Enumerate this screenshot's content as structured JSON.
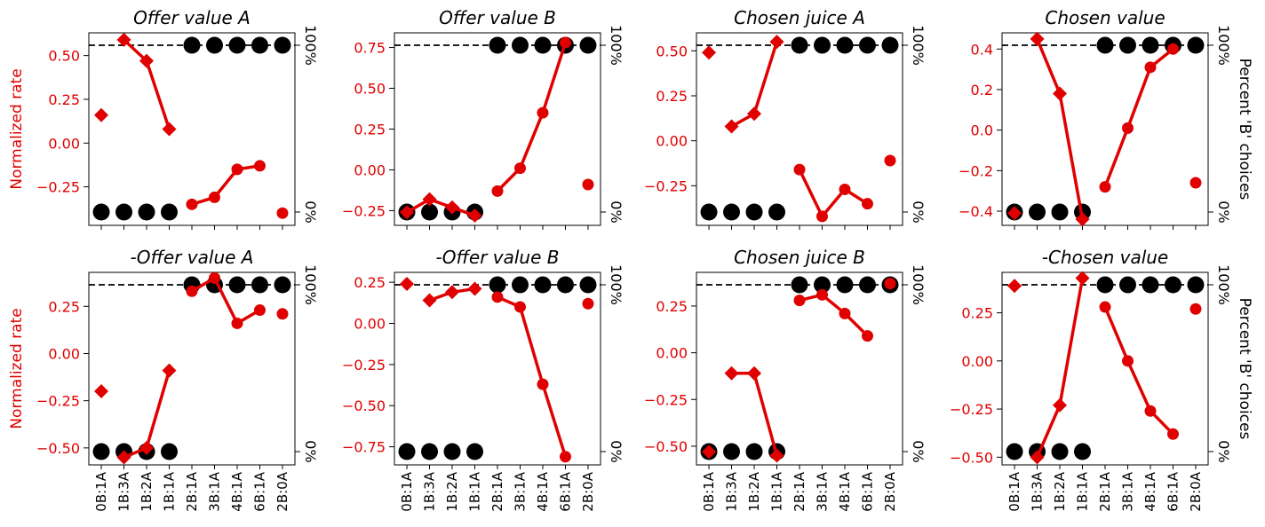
{
  "colors": {
    "rate": "#e00000",
    "choice": "#000000",
    "reference": "#000000"
  },
  "chart_data": [
    {
      "type": "line",
      "title": "Offer value A",
      "ylabel_left": "Normalized rate",
      "ylabel_right": "",
      "categories": [
        "0B:1A",
        "1B:3A",
        "1B:2A",
        "1B:1A",
        "2B:1A",
        "3B:1A",
        "4B:1A",
        "6B:1A",
        "2B:0A"
      ],
      "ylim": [
        -0.47,
        0.63
      ],
      "yticks": [
        -0.25,
        0.0,
        0.25,
        0.5
      ],
      "ytick_labels": [
        "−0.25",
        "0.00",
        "0.25",
        "0.50"
      ],
      "right_axis": {
        "ticks": [
          "0%",
          "100%"
        ]
      },
      "percent_B": [
        0,
        0,
        0,
        0,
        100,
        100,
        100,
        100,
        100
      ],
      "rate": [
        0.16,
        0.59,
        0.47,
        0.08,
        -0.35,
        -0.31,
        -0.15,
        -0.13,
        -0.4
      ],
      "rate_markers": [
        "diamond",
        "diamond",
        "diamond",
        "diamond",
        "circle",
        "circle",
        "circle",
        "circle",
        "circle"
      ],
      "rate_segments": [
        [
          1,
          3
        ],
        [
          4,
          7
        ]
      ]
    },
    {
      "type": "line",
      "title": "Offer value B",
      "ylabel_left": "",
      "ylabel_right": "",
      "categories": [
        "0B:1A",
        "1B:3A",
        "1B:2A",
        "1B:1A",
        "2B:1A",
        "3B:1A",
        "4B:1A",
        "6B:1A",
        "2B:0A"
      ],
      "ylim": [
        -0.34,
        0.84
      ],
      "yticks": [
        -0.25,
        0.0,
        0.25,
        0.5,
        0.75
      ],
      "ytick_labels": [
        "−0.25",
        "0.00",
        "0.25",
        "0.50",
        "0.75"
      ],
      "right_axis": {
        "ticks": [
          "0%",
          "100%"
        ]
      },
      "percent_B": [
        0,
        0,
        0,
        0,
        100,
        100,
        100,
        100,
        100
      ],
      "rate": [
        -0.26,
        -0.18,
        -0.23,
        -0.28,
        -0.13,
        0.01,
        0.35,
        0.78,
        -0.09
      ],
      "rate_markers": [
        "diamond",
        "diamond",
        "diamond",
        "diamond",
        "circle",
        "circle",
        "circle",
        "circle",
        "circle"
      ],
      "rate_segments": [
        [
          0,
          3
        ],
        [
          4,
          7
        ]
      ]
    },
    {
      "type": "line",
      "title": "Chosen juice A",
      "ylabel_left": "",
      "ylabel_right": "",
      "categories": [
        "0B:1A",
        "1B:3A",
        "1B:2A",
        "1B:1A",
        "2B:1A",
        "3B:1A",
        "4B:1A",
        "6B:1A",
        "2B:0A"
      ],
      "ylim": [
        -0.47,
        0.6
      ],
      "yticks": [
        -0.25,
        0.0,
        0.25,
        0.5
      ],
      "ytick_labels": [
        "−0.25",
        "0.00",
        "0.25",
        "0.50"
      ],
      "right_axis": {
        "ticks": [
          "0%",
          "100%"
        ]
      },
      "percent_B": [
        0,
        0,
        0,
        0,
        100,
        100,
        100,
        100,
        100
      ],
      "rate": [
        0.49,
        0.08,
        0.15,
        0.55,
        -0.16,
        -0.42,
        -0.27,
        -0.35,
        -0.11
      ],
      "rate_markers": [
        "diamond",
        "diamond",
        "diamond",
        "diamond",
        "circle",
        "circle",
        "circle",
        "circle",
        "circle"
      ],
      "rate_segments": [
        [
          1,
          3
        ],
        [
          4,
          7
        ]
      ]
    },
    {
      "type": "line",
      "title": "Chosen value",
      "ylabel_left": "",
      "ylabel_right": "Percent 'B' choices",
      "categories": [
        "0B:1A",
        "1B:3A",
        "1B:2A",
        "1B:1A",
        "2B:1A",
        "3B:1A",
        "4B:1A",
        "6B:1A",
        "2B:0A"
      ],
      "ylim": [
        -0.47,
        0.48
      ],
      "yticks": [
        -0.4,
        -0.2,
        0.0,
        0.2,
        0.4
      ],
      "ytick_labels": [
        "−0.4",
        "−0.2",
        "0.0",
        "0.2",
        "0.4"
      ],
      "right_axis": {
        "ticks": [
          "0%",
          "100%"
        ]
      },
      "percent_B": [
        0,
        0,
        0,
        0,
        100,
        100,
        100,
        100,
        100
      ],
      "rate": [
        -0.41,
        0.45,
        0.18,
        -0.44,
        -0.28,
        0.01,
        0.31,
        0.4,
        -0.26
      ],
      "rate_markers": [
        "diamond",
        "diamond",
        "diamond",
        "diamond",
        "circle",
        "circle",
        "circle",
        "circle",
        "circle"
      ],
      "rate_segments": [
        [
          1,
          3
        ],
        [
          4,
          7
        ]
      ]
    },
    {
      "type": "line",
      "title": "-Offer value A",
      "ylabel_left": "Normalized rate",
      "ylabel_right": "",
      "categories": [
        "0B:1A",
        "1B:3A",
        "1B:2A",
        "1B:1A",
        "2B:1A",
        "3B:1A",
        "4B:1A",
        "6B:1A",
        "2B:0A"
      ],
      "ylim": [
        -0.59,
        0.43
      ],
      "yticks": [
        -0.5,
        -0.25,
        0.0,
        0.25
      ],
      "ytick_labels": [
        "−0.50",
        "−0.25",
        "0.00",
        "0.25"
      ],
      "right_axis": {
        "ticks": [
          "0%",
          "100%"
        ]
      },
      "percent_B": [
        0,
        0,
        0,
        0,
        100,
        100,
        100,
        100,
        100
      ],
      "rate": [
        -0.2,
        -0.55,
        -0.5,
        -0.09,
        0.33,
        0.4,
        0.16,
        0.23,
        0.21
      ],
      "rate_markers": [
        "diamond",
        "diamond",
        "diamond",
        "diamond",
        "circle",
        "circle",
        "circle",
        "circle",
        "circle"
      ],
      "rate_segments": [
        [
          1,
          3
        ],
        [
          4,
          7
        ]
      ]
    },
    {
      "type": "line",
      "title": "-Offer value B",
      "ylabel_left": "",
      "ylabel_right": "",
      "categories": [
        "0B:1A",
        "1B:3A",
        "1B:2A",
        "1B:1A",
        "2B:1A",
        "3B:1A",
        "4B:1A",
        "6B:1A",
        "2B:0A"
      ],
      "ylim": [
        -0.86,
        0.31
      ],
      "yticks": [
        -0.75,
        -0.5,
        -0.25,
        0.0,
        0.25
      ],
      "ytick_labels": [
        "−0.75",
        "−0.50",
        "−0.25",
        "0.00",
        "0.25"
      ],
      "right_axis": {
        "ticks": [
          "0%",
          "100%"
        ]
      },
      "percent_B": [
        0,
        0,
        0,
        0,
        100,
        100,
        100,
        100,
        100
      ],
      "rate": [
        0.24,
        0.14,
        0.19,
        0.21,
        0.16,
        0.1,
        -0.37,
        -0.81,
        0.12
      ],
      "rate_markers": [
        "diamond",
        "diamond",
        "diamond",
        "diamond",
        "circle",
        "circle",
        "circle",
        "circle",
        "circle"
      ],
      "rate_segments": [
        [
          1,
          3
        ],
        [
          4,
          7
        ]
      ]
    },
    {
      "type": "line",
      "title": "Chosen juice B",
      "ylabel_left": "",
      "ylabel_right": "",
      "categories": [
        "0B:1A",
        "1B:3A",
        "1B:2A",
        "1B:1A",
        "2B:1A",
        "3B:1A",
        "4B:1A",
        "6B:1A",
        "2B:0A"
      ],
      "ylim": [
        -0.6,
        0.43
      ],
      "yticks": [
        -0.5,
        -0.25,
        0.0,
        0.25
      ],
      "ytick_labels": [
        "−0.50",
        "−0.25",
        "0.00",
        "0.25"
      ],
      "right_axis": {
        "ticks": [
          "0%",
          "100%"
        ]
      },
      "percent_B": [
        0,
        0,
        0,
        0,
        100,
        100,
        100,
        100,
        100
      ],
      "rate": [
        -0.53,
        -0.11,
        -0.11,
        -0.55,
        0.28,
        0.31,
        0.21,
        0.09,
        0.37
      ],
      "rate_markers": [
        "diamond",
        "diamond",
        "diamond",
        "diamond",
        "circle",
        "circle",
        "circle",
        "circle",
        "circle"
      ],
      "rate_segments": [
        [
          1,
          3
        ],
        [
          4,
          7
        ]
      ]
    },
    {
      "type": "line",
      "title": "-Chosen value",
      "ylabel_left": "",
      "ylabel_right": "Percent 'B' choices",
      "categories": [
        "0B:1A",
        "1B:3A",
        "1B:2A",
        "1B:1A",
        "2B:1A",
        "3B:1A",
        "4B:1A",
        "6B:1A",
        "2B:0A"
      ],
      "ylim": [
        -0.54,
        0.46
      ],
      "yticks": [
        -0.5,
        -0.25,
        0.0,
        0.25
      ],
      "ytick_labels": [
        "−0.50",
        "−0.25",
        "0.00",
        "0.25"
      ],
      "right_axis": {
        "ticks": [
          "0%",
          "100%"
        ]
      },
      "percent_B": [
        0,
        0,
        0,
        0,
        100,
        100,
        100,
        100,
        100
      ],
      "rate": [
        0.39,
        -0.5,
        -0.23,
        0.43,
        0.28,
        0.0,
        -0.26,
        -0.38,
        0.27
      ],
      "rate_markers": [
        "diamond",
        "diamond",
        "diamond",
        "diamond",
        "circle",
        "circle",
        "circle",
        "circle",
        "circle"
      ],
      "rate_segments": [
        [
          1,
          3
        ],
        [
          4,
          7
        ]
      ]
    }
  ]
}
